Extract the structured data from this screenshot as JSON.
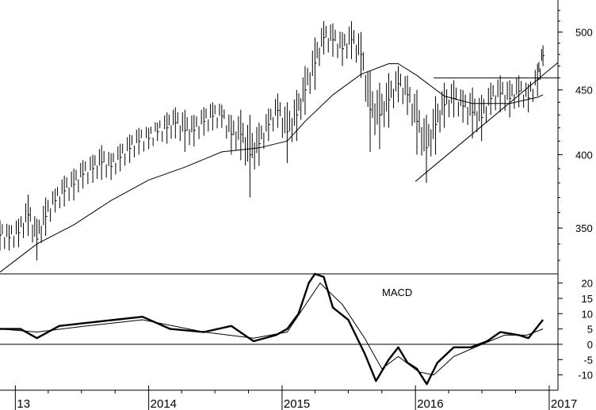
{
  "chart_data": [
    {
      "type": "ohlc",
      "panel": "price",
      "y_scale": "log",
      "ylim": [
        322,
        530
      ],
      "ytick_labels": [
        "500",
        "450",
        "400",
        "350"
      ],
      "yticks": [
        500,
        450,
        400,
        350
      ],
      "x_range": [
        "2012-11-20",
        "2017-01-25"
      ],
      "series": [
        {
          "values_low_high": [
            [
              "2012-11-20",
              336,
              355
            ],
            [
              "2012-12-15",
              336,
              352
            ],
            [
              "2013-01-10",
              338,
              356
            ],
            [
              "2013-02-05",
              345,
              372
            ],
            [
              "2013-03-01",
              330,
              356
            ],
            [
              "2013-03-25",
              345,
              370
            ],
            [
              "2013-04-20",
              360,
              376
            ],
            [
              "2013-05-15",
              364,
              385
            ],
            [
              "2013-06-10",
              368,
              390
            ],
            [
              "2013-07-05",
              376,
              396
            ],
            [
              "2013-08-01",
              380,
              400
            ],
            [
              "2013-08-25",
              382,
              407
            ],
            [
              "2013-09-20",
              382,
              401
            ],
            [
              "2013-10-15",
              388,
              408
            ],
            [
              "2013-11-10",
              394,
              415
            ],
            [
              "2013-12-05",
              400,
              420
            ],
            [
              "2014-01-01",
              404,
              420
            ],
            [
              "2014-01-25",
              410,
              424
            ],
            [
              "2014-02-20",
              408,
              432
            ],
            [
              "2014-03-15",
              412,
              436
            ],
            [
              "2014-04-10",
              402,
              434
            ],
            [
              "2014-05-05",
              406,
              430
            ],
            [
              "2014-06-01",
              414,
              436
            ],
            [
              "2014-06-25",
              418,
              440
            ],
            [
              "2014-07-20",
              420,
              438
            ],
            [
              "2014-08-15",
              400,
              430
            ],
            [
              "2014-09-10",
              396,
              434
            ],
            [
              "2014-10-05",
              370,
              430
            ],
            [
              "2014-10-30",
              392,
              424
            ],
            [
              "2014-11-25",
              410,
              435
            ],
            [
              "2014-12-20",
              420,
              447
            ],
            [
              "2015-01-15",
              394,
              440
            ],
            [
              "2015-02-10",
              410,
              450
            ],
            [
              "2015-03-05",
              430,
              470
            ],
            [
              "2015-04-01",
              450,
              495
            ],
            [
              "2015-04-25",
              480,
              510
            ],
            [
              "2015-05-20",
              478,
              508
            ],
            [
              "2015-06-15",
              470,
              500
            ],
            [
              "2015-07-10",
              476,
              510
            ],
            [
              "2015-08-05",
              460,
              500
            ],
            [
              "2015-08-30",
              402,
              466
            ],
            [
              "2015-09-25",
              404,
              456
            ],
            [
              "2015-10-20",
              420,
              464
            ],
            [
              "2015-11-15",
              440,
              470
            ],
            [
              "2015-12-10",
              430,
              462
            ],
            [
              "2016-01-05",
              400,
              450
            ],
            [
              "2016-01-31",
              380,
              430
            ],
            [
              "2016-02-25",
              400,
              445
            ],
            [
              "2016-03-20",
              420,
              456
            ],
            [
              "2016-04-15",
              428,
              458
            ],
            [
              "2016-05-10",
              424,
              450
            ],
            [
              "2016-06-05",
              412,
              452
            ],
            [
              "2016-06-30",
              410,
              446
            ],
            [
              "2016-07-25",
              430,
              456
            ],
            [
              "2016-08-20",
              432,
              462
            ],
            [
              "2016-09-15",
              428,
              458
            ],
            [
              "2016-10-10",
              436,
              462
            ],
            [
              "2016-11-05",
              432,
              455
            ],
            [
              "2016-11-30",
              445,
              472
            ],
            [
              "2016-12-15",
              470,
              488
            ]
          ]
        },
        {
          "kind": "moving-average",
          "values": [
            [
              "2012-11-20",
              323
            ],
            [
              "2013-03-01",
              340
            ],
            [
              "2013-06-10",
              352
            ],
            [
              "2013-09-20",
              368
            ],
            [
              "2014-01-01",
              382
            ],
            [
              "2014-04-10",
              391
            ],
            [
              "2014-07-20",
              402
            ],
            [
              "2014-10-30",
              405
            ],
            [
              "2015-01-15",
              410
            ],
            [
              "2015-03-05",
              425
            ],
            [
              "2015-05-20",
              446
            ],
            [
              "2015-08-05",
              463
            ],
            [
              "2015-10-20",
              472
            ],
            [
              "2015-11-15",
              472
            ],
            [
              "2016-01-05",
              462
            ],
            [
              "2016-03-20",
              445
            ],
            [
              "2016-06-05",
              439
            ],
            [
              "2016-09-15",
              439
            ],
            [
              "2016-11-30",
              444
            ],
            [
              "2016-12-15",
              446
            ]
          ]
        }
      ],
      "trendlines": [
        {
          "kind": "horizontal",
          "y": 460,
          "x_start": "2016-02-20"
        },
        {
          "kind": "rising",
          "from": [
            "2016-01-01",
            381
          ],
          "to": [
            "2017-01-25",
            473
          ]
        }
      ]
    },
    {
      "type": "line",
      "panel": "macd",
      "annotation": "MACD",
      "ylim": [
        -15,
        23
      ],
      "ytick_labels": [
        "20",
        "15",
        "10",
        "5",
        "0",
        "-5",
        "-10"
      ],
      "yticks": [
        20,
        15,
        10,
        5,
        0,
        -5,
        -10
      ],
      "zero_line": true,
      "series": [
        {
          "style": "thick",
          "values": [
            [
              "2012-11-20",
              5
            ],
            [
              "2013-01-15",
              5
            ],
            [
              "2013-03-01",
              2
            ],
            [
              "2013-05-01",
              6
            ],
            [
              "2013-07-15",
              7
            ],
            [
              "2013-10-01",
              8
            ],
            [
              "2013-12-15",
              9
            ],
            [
              "2014-03-01",
              5
            ],
            [
              "2014-06-01",
              4
            ],
            [
              "2014-08-15",
              6
            ],
            [
              "2014-10-15",
              1
            ],
            [
              "2014-12-15",
              3
            ],
            [
              "2015-01-15",
              5
            ],
            [
              "2015-02-15",
              10
            ],
            [
              "2015-03-15",
              20
            ],
            [
              "2015-04-01",
              23
            ],
            [
              "2015-04-25",
              22
            ],
            [
              "2015-05-20",
              12
            ],
            [
              "2015-07-01",
              8
            ],
            [
              "2015-08-15",
              -3
            ],
            [
              "2015-09-15",
              -12
            ],
            [
              "2015-10-20",
              -5
            ],
            [
              "2015-11-15",
              -1
            ],
            [
              "2015-12-10",
              -6
            ],
            [
              "2016-01-05",
              -8
            ],
            [
              "2016-02-01",
              -13
            ],
            [
              "2016-03-01",
              -6
            ],
            [
              "2016-04-15",
              -1
            ],
            [
              "2016-06-01",
              -1
            ],
            [
              "2016-07-15",
              1
            ],
            [
              "2016-08-20",
              4
            ],
            [
              "2016-10-10",
              3
            ],
            [
              "2016-11-05",
              2
            ],
            [
              "2016-12-15",
              8
            ]
          ]
        },
        {
          "style": "thin",
          "values": [
            [
              "2012-11-20",
              5
            ],
            [
              "2013-03-01",
              4
            ],
            [
              "2013-07-15",
              6
            ],
            [
              "2013-12-15",
              8
            ],
            [
              "2014-06-01",
              4
            ],
            [
              "2014-10-15",
              2
            ],
            [
              "2015-01-15",
              4
            ],
            [
              "2015-03-01",
              12
            ],
            [
              "2015-04-15",
              20
            ],
            [
              "2015-06-15",
              13
            ],
            [
              "2015-08-15",
              2
            ],
            [
              "2015-10-01",
              -8
            ],
            [
              "2015-11-15",
              -4
            ],
            [
              "2016-01-10",
              -9
            ],
            [
              "2016-02-20",
              -10
            ],
            [
              "2016-04-15",
              -4
            ],
            [
              "2016-07-01",
              0
            ],
            [
              "2016-09-01",
              3
            ],
            [
              "2016-11-01",
              3
            ],
            [
              "2016-12-15",
              5
            ]
          ]
        }
      ]
    }
  ],
  "xaxis": {
    "tick_labels": [
      {
        "label": "13",
        "date": "2013-01-01"
      },
      {
        "label": "2014",
        "date": "2014-01-01"
      },
      {
        "label": "2015",
        "date": "2015-01-01"
      },
      {
        "label": "2016",
        "date": "2016-01-01"
      },
      {
        "label": "2017",
        "date": "2017-01-01"
      }
    ]
  },
  "colors": {
    "line": "#000000",
    "background": "#ffffff"
  }
}
